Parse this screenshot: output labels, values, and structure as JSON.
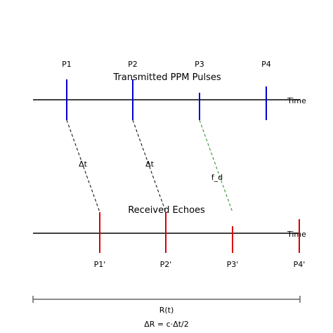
{
  "transmitted": {
    "title": "Transmitted PPM Pulses",
    "axis_label": "Time",
    "color": "#0000cc",
    "pulses": [
      {
        "label": "P1"
      },
      {
        "label": "P2"
      },
      {
        "label": "P3"
      },
      {
        "label": "P4"
      }
    ]
  },
  "received": {
    "title": "Received Echoes",
    "axis_label": "Time",
    "color": "#dd0000",
    "echoes": [
      {
        "label": "P1'"
      },
      {
        "label": "P2'"
      },
      {
        "label": "P3'"
      },
      {
        "label": "P4'"
      }
    ]
  },
  "links": {
    "delay_label": "Δt",
    "doppler_label": "f_d",
    "delay_color": "#000000",
    "doppler_color": "#228b22"
  },
  "range_bar": {
    "label": "R(t)",
    "formula": "ΔR = c·Δt/2",
    "color": "#666666"
  }
}
